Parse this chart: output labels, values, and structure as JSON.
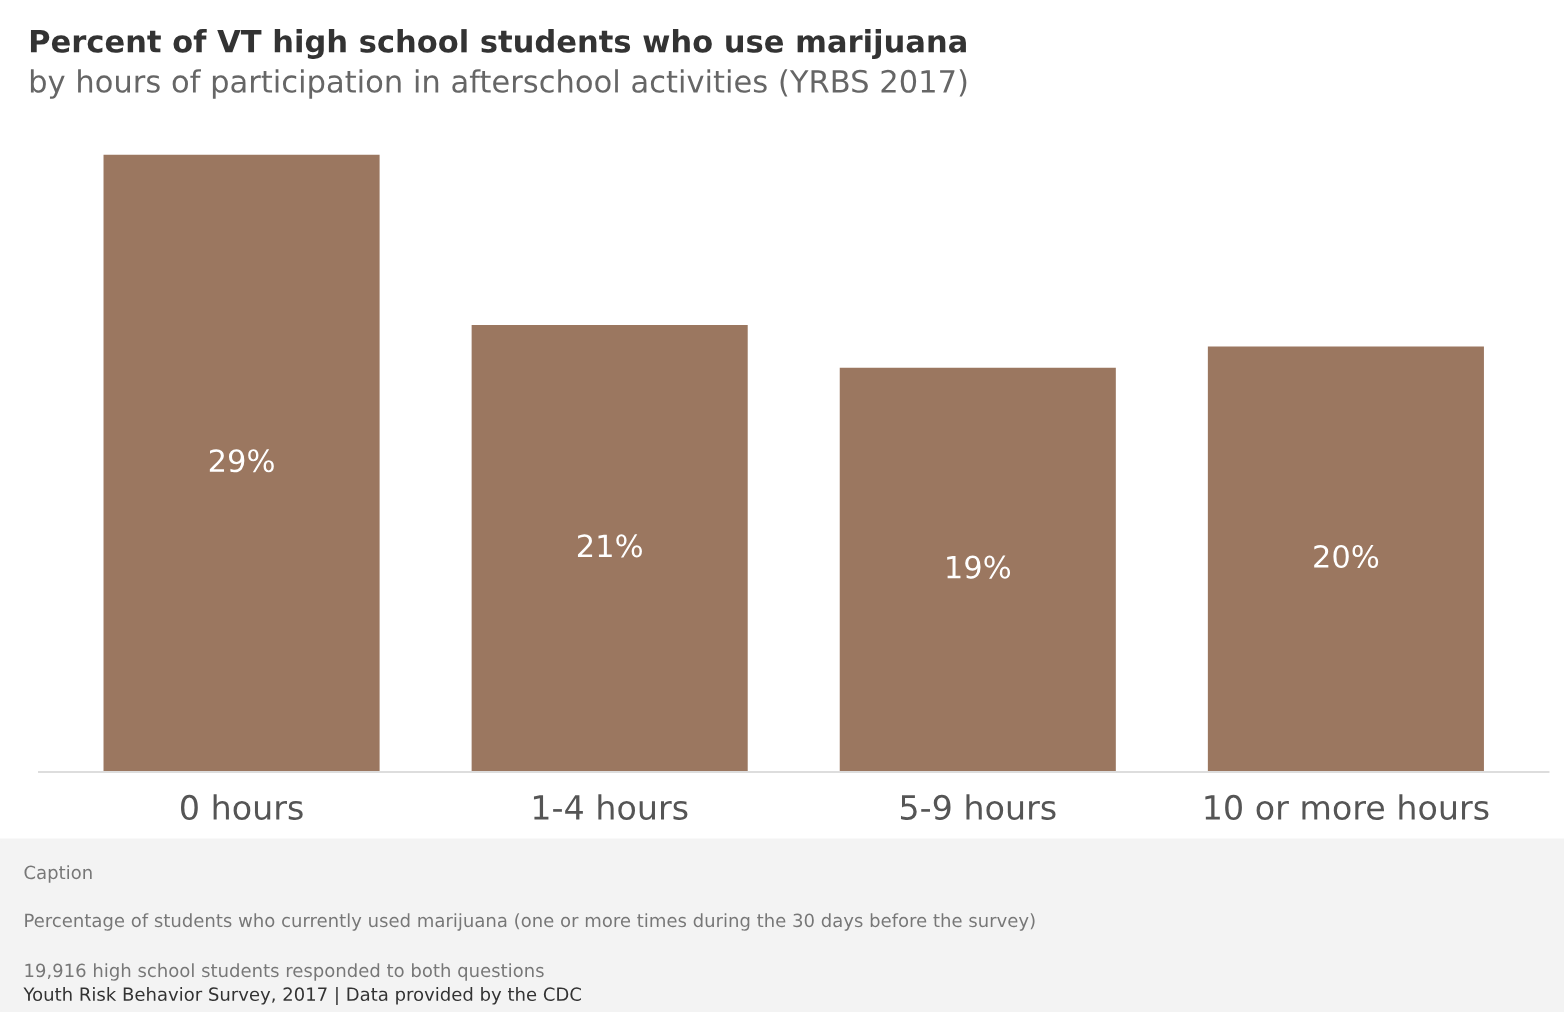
{
  "chart_data": {
    "type": "bar",
    "title": "Percent of VT high school students who use marijuana",
    "subtitle": "by hours of participation in afterschool activities (YRBS 2017)",
    "categories": [
      "0 hours",
      "1-4 hours",
      "5-9 hours",
      "10 or more hours"
    ],
    "values": [
      29,
      21,
      19,
      20
    ],
    "value_labels": [
      "29%",
      "21%",
      "19%",
      "20%"
    ],
    "color": "#9b7760",
    "grid": false,
    "legend": false,
    "annotations": [
      "Caption",
      "Percentage of students who currently used marijuana (one or more times during the 30 days before the survey)",
      "19,916 high school students responded to both questions",
      "Youth Risk Behavior Survey, 2017 | Data provided by the CDC"
    ]
  }
}
